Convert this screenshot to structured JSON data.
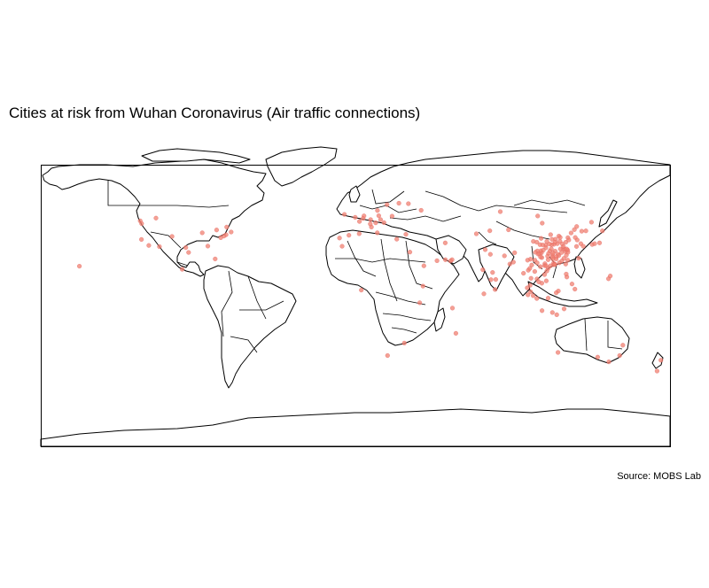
{
  "title": "Cities at risk from Wuhan Coronavirus (Air traffic connections)",
  "caption": "Source: MOBS Lab",
  "colors": {
    "point": "#f08070",
    "land_fill": "#ffffff",
    "outline": "#000000"
  },
  "map": {
    "projection": "equirectangular",
    "extent": {
      "lon": [
        -180,
        180
      ],
      "lat": [
        -90,
        84
      ]
    }
  },
  "points": [
    {
      "lon": 114.3,
      "lat": 30.6
    },
    {
      "lon": 116.4,
      "lat": 39.9
    },
    {
      "lon": 121.5,
      "lat": 31.2
    },
    {
      "lon": 113.3,
      "lat": 23.1
    },
    {
      "lon": 114.1,
      "lat": 22.5
    },
    {
      "lon": 104.1,
      "lat": 30.7
    },
    {
      "lon": 106.5,
      "lat": 29.6
    },
    {
      "lon": 108.9,
      "lat": 34.3
    },
    {
      "lon": 118.8,
      "lat": 32.1
    },
    {
      "lon": 120.2,
      "lat": 30.3
    },
    {
      "lon": 117.2,
      "lat": 39.1
    },
    {
      "lon": 112.9,
      "lat": 28.2
    },
    {
      "lon": 115.9,
      "lat": 28.7
    },
    {
      "lon": 113.6,
      "lat": 34.8
    },
    {
      "lon": 117.0,
      "lat": 36.7
    },
    {
      "lon": 120.4,
      "lat": 36.1
    },
    {
      "lon": 123.4,
      "lat": 41.8
    },
    {
      "lon": 126.6,
      "lat": 45.8
    },
    {
      "lon": 125.3,
      "lat": 43.9
    },
    {
      "lon": 111.7,
      "lat": 40.8
    },
    {
      "lon": 112.5,
      "lat": 37.9
    },
    {
      "lon": 114.5,
      "lat": 38.0
    },
    {
      "lon": 117.3,
      "lat": 31.9
    },
    {
      "lon": 119.3,
      "lat": 26.1
    },
    {
      "lon": 118.1,
      "lat": 24.5
    },
    {
      "lon": 110.3,
      "lat": 25.3
    },
    {
      "lon": 108.4,
      "lat": 22.8
    },
    {
      "lon": 102.7,
      "lat": 25.0
    },
    {
      "lon": 106.7,
      "lat": 26.6
    },
    {
      "lon": 103.8,
      "lat": 36.1
    },
    {
      "lon": 101.8,
      "lat": 36.6
    },
    {
      "lon": 87.6,
      "lat": 43.8
    },
    {
      "lon": 91.1,
      "lat": 29.6
    },
    {
      "lon": 110.3,
      "lat": 20.0
    },
    {
      "lon": 109.5,
      "lat": 18.3
    },
    {
      "lon": 121.6,
      "lat": 29.9
    },
    {
      "lon": 120.7,
      "lat": 28.0
    },
    {
      "lon": 111.3,
      "lat": 30.7
    },
    {
      "lon": 112.1,
      "lat": 32.0
    },
    {
      "lon": 113.1,
      "lat": 29.4
    },
    {
      "lon": 115.0,
      "lat": 27.1
    },
    {
      "lon": 116.7,
      "lat": 23.4
    },
    {
      "lon": 110.5,
      "lat": 29.1
    },
    {
      "lon": 109.0,
      "lat": 32.7
    },
    {
      "lon": 105.6,
      "lat": 34.6
    },
    {
      "lon": 107.2,
      "lat": 34.4
    },
    {
      "lon": 110.0,
      "lat": 27.5
    },
    {
      "lon": 112.6,
      "lat": 26.9
    },
    {
      "lon": 113.0,
      "lat": 25.8
    },
    {
      "lon": 114.9,
      "lat": 25.8
    },
    {
      "lon": 116.4,
      "lat": 27.9
    },
    {
      "lon": 118.0,
      "lat": 29.7
    },
    {
      "lon": 119.9,
      "lat": 31.8
    },
    {
      "lon": 120.9,
      "lat": 31.9
    },
    {
      "lon": 119.0,
      "lat": 33.6
    },
    {
      "lon": 118.3,
      "lat": 35.1
    },
    {
      "lon": 115.5,
      "lat": 35.2
    },
    {
      "lon": 114.3,
      "lat": 36.1
    },
    {
      "lon": 112.3,
      "lat": 34.6
    },
    {
      "lon": 111.0,
      "lat": 35.0
    },
    {
      "lon": 109.5,
      "lat": 36.6
    },
    {
      "lon": 106.3,
      "lat": 38.5
    },
    {
      "lon": 103.0,
      "lat": 29.9
    },
    {
      "lon": 104.6,
      "lat": 28.8
    },
    {
      "lon": 105.4,
      "lat": 28.9
    },
    {
      "lon": 106.1,
      "lat": 30.8
    },
    {
      "lon": 107.5,
      "lat": 31.2
    },
    {
      "lon": 100.2,
      "lat": 25.6
    },
    {
      "lon": 100.9,
      "lat": 22.0
    },
    {
      "lon": 98.5,
      "lat": 25.0
    },
    {
      "lon": 104.0,
      "lat": 23.4
    },
    {
      "lon": 105.9,
      "lat": 27.0
    },
    {
      "lon": 108.3,
      "lat": 21.7
    },
    {
      "lon": 109.1,
      "lat": 21.5
    },
    {
      "lon": 111.6,
      "lat": 21.5
    },
    {
      "lon": 113.6,
      "lat": 22.2
    },
    {
      "lon": 114.2,
      "lat": 22.3
    },
    {
      "lon": 121.5,
      "lat": 25.0
    },
    {
      "lon": 120.3,
      "lat": 22.6
    },
    {
      "lon": 126.9,
      "lat": 37.5
    },
    {
      "lon": 129.0,
      "lat": 35.2
    },
    {
      "lon": 126.5,
      "lat": 33.5
    },
    {
      "lon": 139.7,
      "lat": 35.7
    },
    {
      "lon": 135.5,
      "lat": 34.7
    },
    {
      "lon": 130.4,
      "lat": 33.6
    },
    {
      "lon": 141.3,
      "lat": 43.1
    },
    {
      "lon": 136.9,
      "lat": 35.2
    },
    {
      "lon": 127.7,
      "lat": 26.2
    },
    {
      "lon": 121.6,
      "lat": 38.9
    },
    {
      "lon": 122.1,
      "lat": 37.5
    },
    {
      "lon": 129.5,
      "lat": 42.9
    },
    {
      "lon": 125.8,
      "lat": 39.0
    },
    {
      "lon": 106.9,
      "lat": 47.9
    },
    {
      "lon": 100.5,
      "lat": 13.8
    },
    {
      "lon": 98.3,
      "lat": 7.9
    },
    {
      "lon": 98.9,
      "lat": 18.8
    },
    {
      "lon": 99.8,
      "lat": 19.9
    },
    {
      "lon": 100.0,
      "lat": 9.5
    },
    {
      "lon": 105.8,
      "lat": 21.0
    },
    {
      "lon": 106.7,
      "lat": 10.8
    },
    {
      "lon": 108.2,
      "lat": 16.1
    },
    {
      "lon": 109.2,
      "lat": 12.2
    },
    {
      "lon": 104.9,
      "lat": 11.6
    },
    {
      "lon": 103.9,
      "lat": 13.4
    },
    {
      "lon": 102.6,
      "lat": 18.0
    },
    {
      "lon": 96.2,
      "lat": 16.9
    },
    {
      "lon": 101.7,
      "lat": 3.1
    },
    {
      "lon": 103.8,
      "lat": 1.35
    },
    {
      "lon": 100.3,
      "lat": 5.4
    },
    {
      "lon": 116.1,
      "lat": 5.98
    },
    {
      "lon": 110.3,
      "lat": 1.55
    },
    {
      "lon": 106.8,
      "lat": -6.2
    },
    {
      "lon": 115.2,
      "lat": -8.7
    },
    {
      "lon": 112.7,
      "lat": -7.3
    },
    {
      "lon": 98.7,
      "lat": 3.6
    },
    {
      "lon": 119.4,
      "lat": -5.1
    },
    {
      "lon": 121.0,
      "lat": 14.6
    },
    {
      "lon": 123.9,
      "lat": 10.3
    },
    {
      "lon": 120.6,
      "lat": 16.4
    },
    {
      "lon": 125.6,
      "lat": 7.1
    },
    {
      "lon": 114.9,
      "lat": 4.9
    },
    {
      "lon": 77.2,
      "lat": 28.6
    },
    {
      "lon": 72.9,
      "lat": 19.1
    },
    {
      "lon": 77.6,
      "lat": 13.0
    },
    {
      "lon": 80.3,
      "lat": 13.1
    },
    {
      "lon": 88.4,
      "lat": 22.6
    },
    {
      "lon": 78.5,
      "lat": 17.4
    },
    {
      "lon": 79.9,
      "lat": 6.9
    },
    {
      "lon": 85.3,
      "lat": 27.7
    },
    {
      "lon": 90.4,
      "lat": 23.8
    },
    {
      "lon": 73.5,
      "lat": 4.2
    },
    {
      "lon": 74.3,
      "lat": 31.5
    },
    {
      "lon": 55.3,
      "lat": 25.3
    },
    {
      "lon": 54.4,
      "lat": 24.5
    },
    {
      "lon": 51.5,
      "lat": 25.3
    },
    {
      "lon": 46.7,
      "lat": 24.7
    },
    {
      "lon": 39.2,
      "lat": 21.5
    },
    {
      "lon": 51.4,
      "lat": 35.7
    },
    {
      "lon": 28.9,
      "lat": 41.0
    },
    {
      "lon": 37.6,
      "lat": 55.8
    },
    {
      "lon": 30.3,
      "lat": 59.9
    },
    {
      "lon": 104.3,
      "lat": 52.3
    },
    {
      "lon": 135.1,
      "lat": 48.5
    },
    {
      "lon": 131.9,
      "lat": 43.1
    },
    {
      "lon": 82.9,
      "lat": 55.0
    },
    {
      "lon": 76.9,
      "lat": 43.2
    },
    {
      "lon": 69.2,
      "lat": 41.3
    },
    {
      "lon": -0.1,
      "lat": 51.5
    },
    {
      "lon": 2.35,
      "lat": 48.9
    },
    {
      "lon": 8.7,
      "lat": 50.1
    },
    {
      "lon": 11.6,
      "lat": 48.1
    },
    {
      "lon": 13.4,
      "lat": 52.5
    },
    {
      "lon": 4.9,
      "lat": 52.4
    },
    {
      "lon": 12.5,
      "lat": 41.9
    },
    {
      "lon": 9.2,
      "lat": 45.5
    },
    {
      "lon": -3.7,
      "lat": 40.4
    },
    {
      "lon": 2.2,
      "lat": 41.4
    },
    {
      "lon": 16.4,
      "lat": 48.2
    },
    {
      "lon": 8.5,
      "lat": 47.4
    },
    {
      "lon": 14.4,
      "lat": 50.1
    },
    {
      "lon": 21.0,
      "lat": 52.2
    },
    {
      "lon": 12.6,
      "lat": 55.7
    },
    {
      "lon": 18.1,
      "lat": 59.3
    },
    {
      "lon": 24.9,
      "lat": 60.2
    },
    {
      "lon": 23.7,
      "lat": 38.0
    },
    {
      "lon": -6.3,
      "lat": 53.3
    },
    {
      "lon": -9.1,
      "lat": 38.7
    },
    {
      "lon": 4.4,
      "lat": 50.8
    },
    {
      "lon": 31.2,
      "lat": 30.0
    },
    {
      "lon": 38.7,
      "lat": 9.0
    },
    {
      "lon": 36.8,
      "lat": -1.3
    },
    {
      "lon": 28.0,
      "lat": -26.2
    },
    {
      "lon": 18.4,
      "lat": -33.9
    },
    {
      "lon": 3.4,
      "lat": 6.5
    },
    {
      "lon": -7.6,
      "lat": 33.6
    },
    {
      "lon": 57.5,
      "lat": -20.2
    },
    {
      "lon": 55.5,
      "lat": -4.6
    },
    {
      "lon": 151.2,
      "lat": -33.9
    },
    {
      "lon": 145.0,
      "lat": -37.8
    },
    {
      "lon": 153.0,
      "lat": -27.5
    },
    {
      "lon": 115.9,
      "lat": -32.0
    },
    {
      "lon": 138.6,
      "lat": -34.9
    },
    {
      "lon": 174.8,
      "lat": -36.8
    },
    {
      "lon": 172.6,
      "lat": -43.5
    },
    {
      "lon": 144.8,
      "lat": 13.5
    },
    {
      "lon": 145.8,
      "lat": 15.2
    },
    {
      "lon": -118.2,
      "lat": 34.1
    },
    {
      "lon": -122.4,
      "lat": 37.8
    },
    {
      "lon": -122.3,
      "lat": 47.6
    },
    {
      "lon": -123.1,
      "lat": 49.3
    },
    {
      "lon": -79.4,
      "lat": 43.7
    },
    {
      "lon": -74.0,
      "lat": 40.7
    },
    {
      "lon": -87.6,
      "lat": 41.9
    },
    {
      "lon": -77.0,
      "lat": 38.9
    },
    {
      "lon": -71.1,
      "lat": 42.4
    },
    {
      "lon": -84.4,
      "lat": 33.7
    },
    {
      "lon": -80.2,
      "lat": 25.8
    },
    {
      "lon": -97.0,
      "lat": 32.8
    },
    {
      "lon": -95.4,
      "lat": 29.8
    },
    {
      "lon": -157.9,
      "lat": 21.3
    },
    {
      "lon": -73.6,
      "lat": 45.5
    },
    {
      "lon": -99.1,
      "lat": 19.4
    },
    {
      "lon": -112.1,
      "lat": 33.4
    },
    {
      "lon": -104.9,
      "lat": 39.7
    },
    {
      "lon": -75.2,
      "lat": 39.9
    },
    {
      "lon": -114.1,
      "lat": 51.0
    }
  ]
}
